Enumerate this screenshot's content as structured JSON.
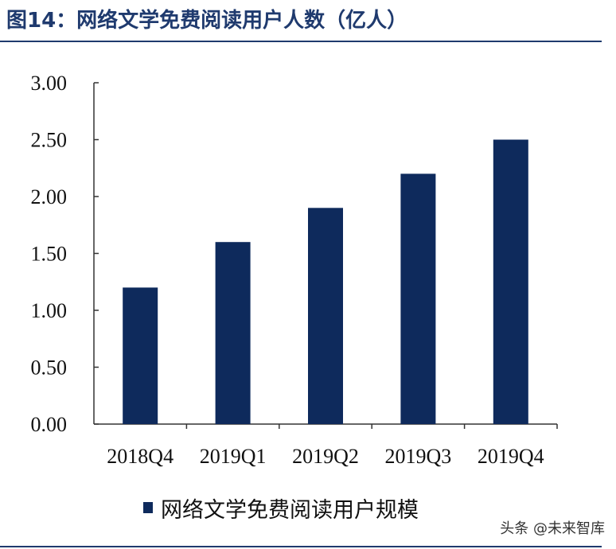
{
  "figure": {
    "title": "图14：网络文学免费阅读用户人数（亿人）"
  },
  "chart_data": {
    "type": "bar",
    "title": "图14：网络文学免费阅读用户人数（亿人）",
    "categories": [
      "2018Q4",
      "2019Q1",
      "2019Q2",
      "2019Q3",
      "2019Q4"
    ],
    "series": [
      {
        "name": "网络文学免费阅读用户规模",
        "values": [
          1.2,
          1.6,
          1.9,
          2.2,
          2.5
        ],
        "color": "#0e2a5c"
      }
    ],
    "y_ticks": [
      "0.00",
      "0.50",
      "1.00",
      "1.50",
      "2.00",
      "2.50",
      "3.00"
    ],
    "ylim": [
      0,
      3
    ],
    "xlabel": "",
    "ylabel": "",
    "grid": false,
    "legend_position": "bottom"
  },
  "watermark": "头条 @未来智库"
}
